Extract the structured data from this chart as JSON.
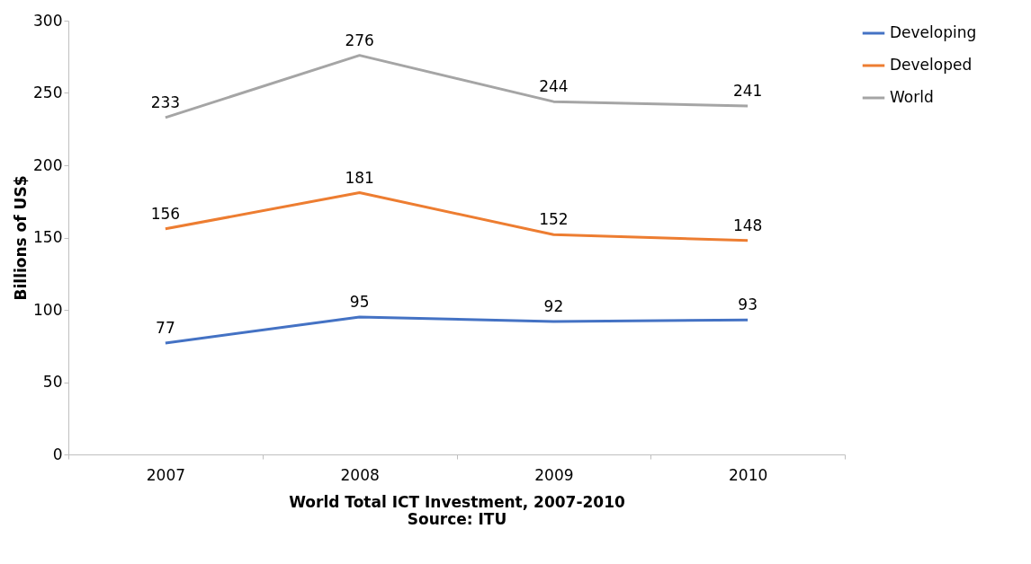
{
  "chart_data": {
    "type": "line",
    "ylabel": "Billions of US$",
    "xlabel": "World Total ICT Investment, 2007-2010",
    "annotations": [
      "Source: ITU"
    ],
    "categories": [
      "2007",
      "2008",
      "2009",
      "2010"
    ],
    "series": [
      {
        "name": "Developing",
        "color": "#4472c4",
        "values": [
          77,
          95,
          92,
          93
        ]
      },
      {
        "name": "Developed",
        "color": "#ed7d31",
        "values": [
          156,
          181,
          152,
          148
        ]
      },
      {
        "name": "World",
        "color": "#a5a5a5",
        "values": [
          233,
          276,
          244,
          241
        ]
      }
    ],
    "ylim": [
      0,
      300
    ],
    "yticks": [
      0,
      50,
      100,
      150,
      200,
      250,
      300
    ],
    "grid": false,
    "legend": "right",
    "data_labels": true,
    "line_style": "solid"
  }
}
